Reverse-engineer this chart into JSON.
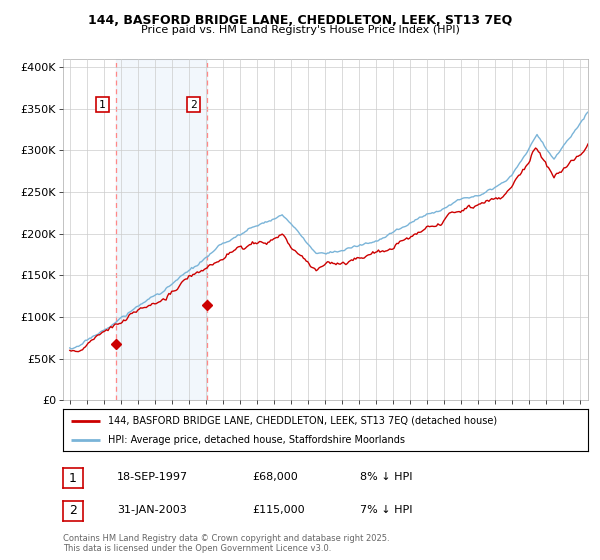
{
  "title1": "144, BASFORD BRIDGE LANE, CHEDDLETON, LEEK, ST13 7EQ",
  "title2": "Price paid vs. HM Land Registry's House Price Index (HPI)",
  "legend_line1": "144, BASFORD BRIDGE LANE, CHEDDLETON, LEEK, ST13 7EQ (detached house)",
  "legend_line2": "HPI: Average price, detached house, Staffordshire Moorlands",
  "annotation1_label": "1",
  "annotation1_date": "18-SEP-1997",
  "annotation1_price": "£68,000",
  "annotation1_hpi": "8% ↓ HPI",
  "annotation2_label": "2",
  "annotation2_date": "31-JAN-2003",
  "annotation2_price": "£115,000",
  "annotation2_hpi": "7% ↓ HPI",
  "copyright_text": "Contains HM Land Registry data © Crown copyright and database right 2025.\nThis data is licensed under the Open Government Licence v3.0.",
  "sale1_year": 1997.72,
  "sale1_value": 68000,
  "sale2_year": 2003.08,
  "sale2_value": 115000,
  "hpi_color": "#7ab4d8",
  "property_color": "#cc0000",
  "dashed_color": "#ff8888",
  "shade_color": "#ddeeff",
  "background_color": "#ffffff",
  "grid_color": "#cccccc",
  "ylim": [
    0,
    410000
  ],
  "xlim_start": 1994.6,
  "xlim_end": 2025.5
}
